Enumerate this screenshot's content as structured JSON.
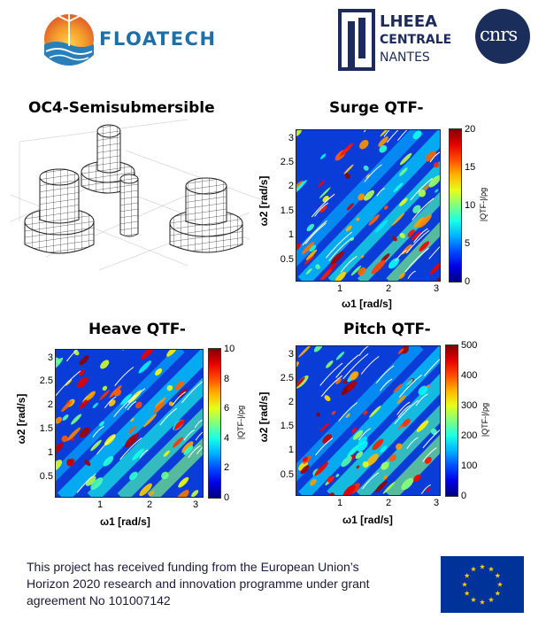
{
  "header": {
    "floatech_name": "FLOATECH",
    "lheea_line1": "LHEEA",
    "lheea_line2": "CENTRALE",
    "lheea_line3": "NANTES",
    "cnrs_name": "cnrs"
  },
  "colors": {
    "floatech_text": "#1e6fa8",
    "lheea_navy": "#1d2a5c",
    "cnrs_blue": "#1b2d5b",
    "eu_blue": "#003399",
    "eu_yellow": "#ffcc00"
  },
  "panels": {
    "model_title": "OC4-Semisubmersible"
  },
  "chart_data": [
    {
      "type": "heatmap",
      "title": "Surge QTF-",
      "xlabel": "ω1 [rad/s]",
      "ylabel": "ω2 [rad/s]",
      "xticks": [
        "1",
        "2",
        "3"
      ],
      "yticks": [
        "0.5",
        "1",
        "1.5",
        "2",
        "2.5",
        "3"
      ],
      "xlim": [
        0.1,
        3.1
      ],
      "ylim": [
        0.1,
        3.2
      ],
      "colorbar_label": "|QTF-|/ρg",
      "colorbar_ticks": [
        "0",
        "5",
        "10",
        "15",
        "20"
      ],
      "colorbar_range": [
        0,
        20
      ]
    },
    {
      "type": "heatmap",
      "title": "Heave QTF-",
      "xlabel": "ω1 [rad/s]",
      "ylabel": "ω2 [rad/s]",
      "xticks": [
        "1",
        "2",
        "3"
      ],
      "yticks": [
        "0.5",
        "1",
        "1.5",
        "2",
        "2.5",
        "3"
      ],
      "xlim": [
        0.1,
        3.1
      ],
      "ylim": [
        0.1,
        3.2
      ],
      "colorbar_label": "|QTF-|/ρg",
      "colorbar_ticks": [
        "0",
        "2",
        "4",
        "6",
        "8",
        "10"
      ],
      "colorbar_range": [
        0,
        10
      ]
    },
    {
      "type": "heatmap",
      "title": "Pitch QTF-",
      "xlabel": "ω1 [rad/s]",
      "ylabel": "ω2 [rad/s]",
      "xticks": [
        "1",
        "2",
        "3"
      ],
      "yticks": [
        "0.5",
        "1",
        "1.5",
        "2",
        "2.5",
        "3"
      ],
      "xlim": [
        0.1,
        3.1
      ],
      "ylim": [
        0.1,
        3.2
      ],
      "colorbar_label": "|QTF-|/ρg",
      "colorbar_ticks": [
        "0",
        "100",
        "200",
        "300",
        "400",
        "500"
      ],
      "colorbar_range": [
        0,
        500
      ]
    }
  ],
  "footer": {
    "line1": "This project has received funding from the European Union’s",
    "line2": "Horizon 2020 research and innovation programme under grant",
    "line3": "agreement No 101007142"
  }
}
